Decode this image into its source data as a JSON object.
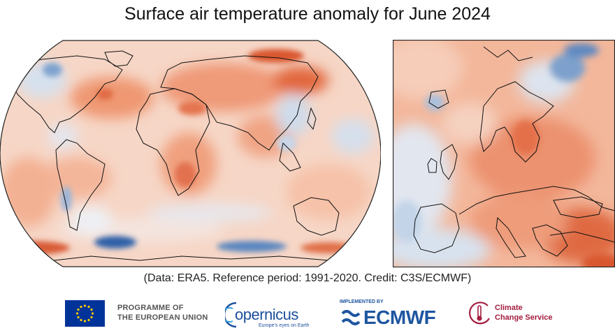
{
  "header": {
    "title": "Surface air temperature anomaly for June 2024"
  },
  "maps": {
    "world": {
      "region": "Global",
      "projection": "Robinson"
    },
    "europe": {
      "region": "Europe"
    }
  },
  "footer": {
    "caption": "(Data: ERA5.  Reference period: 1991-2020.  Credit: C3S/ECMWF)",
    "logos": {
      "eu": {
        "line1": "PROGRAMME OF",
        "line2": "THE EUROPEAN UNION"
      },
      "copernicus": {
        "name": "opernicus",
        "tagline": "Europe's eyes on Earth"
      },
      "ecmwf": {
        "implemented_by": "IMPLEMENTED BY",
        "name": "ECMWF"
      },
      "c3s": {
        "line1": "Climate",
        "line2": "Change Service"
      }
    }
  },
  "colors": {
    "warm_strong": "#d9572f",
    "warm_mid": "#ef9872",
    "warm_light": "#f8c9b2",
    "neutral": "#f6ece6",
    "cool_light": "#d3e0ef",
    "cool_mid": "#94b3d6",
    "cool_strong": "#3f6fae",
    "eu_blue": "#003399",
    "eu_gold": "#ffcc00",
    "copernicus_blue": "#1c4f9c",
    "ecmwf_blue": "#1e56a0",
    "c3s_red": "#a31d3f"
  }
}
